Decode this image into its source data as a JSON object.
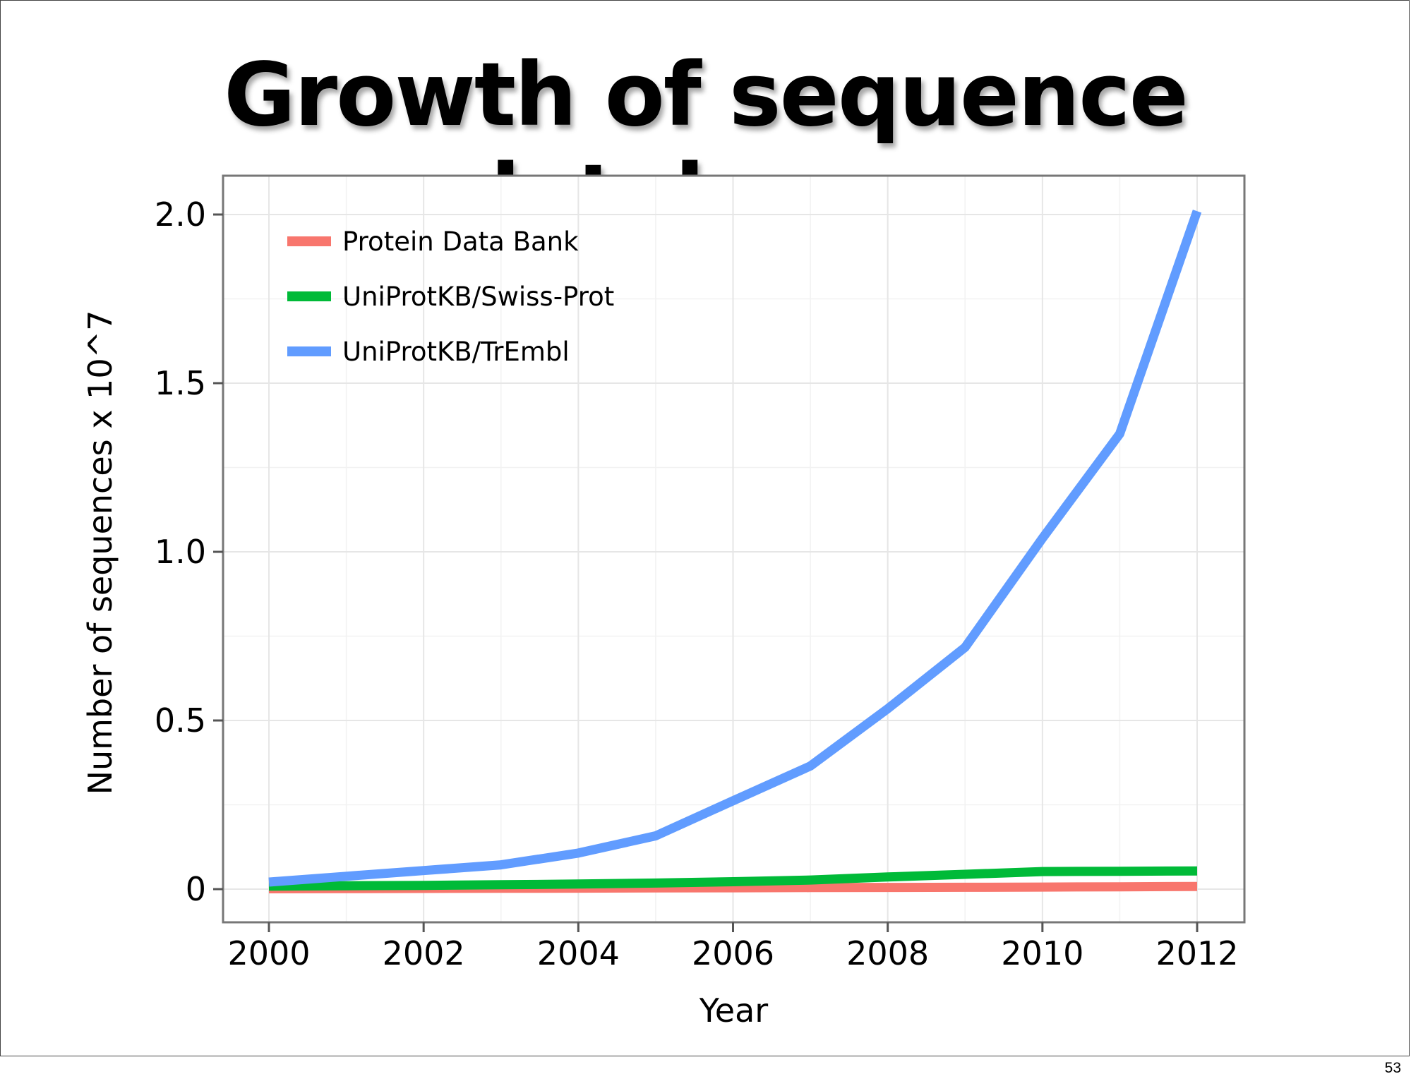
{
  "slide": {
    "title": "Growth of sequence databases",
    "page_number": "53"
  },
  "colors": {
    "pdb": "#f8766d",
    "swissprot": "#00ba38",
    "trembl": "#619cff",
    "grid": "#e6e6e6",
    "panel_border": "#777777"
  },
  "chart_data": {
    "type": "line",
    "title": "",
    "xlabel": "Year",
    "ylabel": "Number of sequences x 10^7",
    "xlim": [
      2000,
      2012
    ],
    "ylim": [
      0,
      2.0
    ],
    "x_ticks": [
      {
        "value": 2000,
        "label": "2000"
      },
      {
        "value": 2002,
        "label": "2002"
      },
      {
        "value": 2004,
        "label": "2004"
      },
      {
        "value": 2006,
        "label": "2006"
      },
      {
        "value": 2008,
        "label": "2008"
      },
      {
        "value": 2010,
        "label": "2010"
      },
      {
        "value": 2012,
        "label": "2012"
      }
    ],
    "y_ticks": [
      {
        "value": 0,
        "label": "0"
      },
      {
        "value": 0.5,
        "label": "0.5"
      },
      {
        "value": 1.0,
        "label": "1.0"
      },
      {
        "value": 1.5,
        "label": "1.5"
      },
      {
        "value": 2.0,
        "label": "2.0"
      }
    ],
    "grid": true,
    "legend_position": "top-left",
    "x": [
      2000,
      2001,
      2002,
      2003,
      2004,
      2005,
      2006,
      2007,
      2008,
      2009,
      2010,
      2011,
      2012
    ],
    "series": [
      {
        "name": "Protein Data Bank",
        "color_key": "pdb",
        "values": [
          0.001,
          0.0015,
          0.002,
          0.0025,
          0.003,
          0.0035,
          0.004,
          0.0045,
          0.005,
          0.0055,
          0.006,
          0.007,
          0.008
        ]
      },
      {
        "name": "UniProtKB/Swiss-Prot",
        "color_key": "swissprot",
        "values": [
          0.009,
          0.01,
          0.011,
          0.013,
          0.015,
          0.018,
          0.022,
          0.027,
          0.036,
          0.044,
          0.052,
          0.053,
          0.054
        ]
      },
      {
        "name": "UniProtKB/TrEmbl",
        "color_key": "trembl",
        "values": [
          0.021,
          0.038,
          0.055,
          0.072,
          0.107,
          0.158,
          0.262,
          0.365,
          0.535,
          0.717,
          1.04,
          1.35,
          2.01
        ]
      }
    ]
  }
}
